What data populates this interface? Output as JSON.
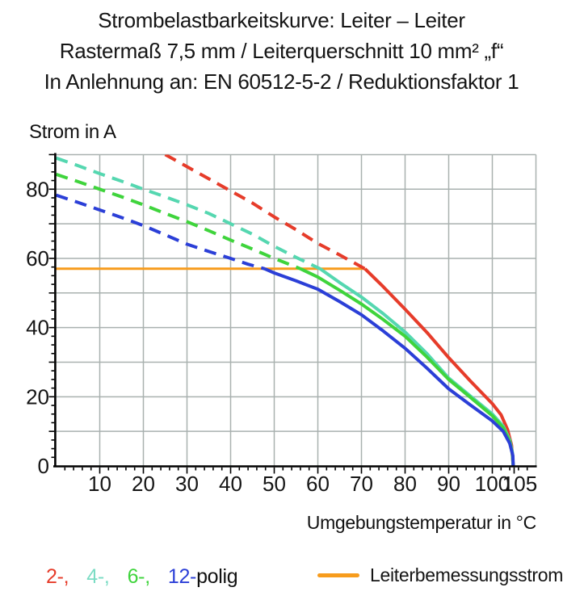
{
  "chart_data": {
    "type": "line",
    "title_lines": [
      "Strombelastbarkeitskurve: Leiter – Leiter",
      "Rastermaß 7,5 mm / Leiterquerschnitt 10 mm² „f“",
      "In Anlehnung an: EN 60512-5-2 / Reduktionsfaktor 1"
    ],
    "xlabel": "Umgebungstemperatur in °C",
    "ylabel": "Strom in A",
    "xlim": [
      0,
      110
    ],
    "ylim": [
      0,
      90
    ],
    "x_tick_labels": [
      10,
      20,
      30,
      40,
      50,
      60,
      70,
      80,
      90,
      100,
      105
    ],
    "y_tick_labels": [
      0,
      20,
      40,
      60,
      80
    ],
    "x_grid": [
      10,
      20,
      30,
      40,
      50,
      60,
      70,
      80,
      90,
      100
    ],
    "y_grid": [
      10,
      20,
      30,
      40,
      50,
      60,
      70,
      80
    ],
    "x_minor_step": 2,
    "y_minor_step": 2.5,
    "grid": true,
    "legend_position": "bottom",
    "rated_current_A": 57,
    "rated_line": {
      "name": "Leiterbemessungsstrom",
      "color": "#f79c1d",
      "points": [
        [
          0,
          57
        ],
        [
          70.8,
          57
        ]
      ]
    },
    "colors": {
      "grid": "#a9b1af",
      "axis": "#000000",
      "text": "#151515"
    },
    "series": [
      {
        "name": "2-polig",
        "color": "#e63c2a",
        "dashed": [
          [
            25,
            90
          ],
          [
            30,
            86.5
          ],
          [
            35,
            83
          ],
          [
            40,
            79.5
          ],
          [
            45,
            76
          ],
          [
            50,
            72
          ],
          [
            55,
            68.3
          ],
          [
            60,
            64.3
          ],
          [
            65,
            61
          ],
          [
            70.8,
            57
          ]
        ],
        "solid": [
          [
            70.8,
            57
          ],
          [
            75,
            51.8
          ],
          [
            80,
            45.3
          ],
          [
            85,
            38.6
          ],
          [
            90,
            31.3
          ],
          [
            95,
            24.5
          ],
          [
            100,
            18
          ],
          [
            102,
            14.8
          ],
          [
            103.5,
            10.5
          ],
          [
            104.4,
            6
          ],
          [
            104.8,
            0
          ]
        ]
      },
      {
        "name": "4-polig",
        "color": "#55d7b0",
        "dashed": [
          [
            0,
            89
          ],
          [
            5,
            86.8
          ],
          [
            10,
            84.5
          ],
          [
            15,
            82.3
          ],
          [
            20,
            80
          ],
          [
            25,
            77.8
          ],
          [
            30,
            75.5
          ],
          [
            35,
            73
          ],
          [
            40,
            70
          ],
          [
            45,
            67
          ],
          [
            50,
            63.5
          ],
          [
            55,
            60.3
          ],
          [
            60.5,
            57
          ]
        ],
        "solid": [
          [
            60.5,
            57
          ],
          [
            65,
            53
          ],
          [
            70,
            48.8
          ],
          [
            75,
            44
          ],
          [
            80,
            38.7
          ],
          [
            85,
            32.5
          ],
          [
            90,
            25.4
          ],
          [
            95,
            20.2
          ],
          [
            100,
            15
          ],
          [
            102.5,
            11.5
          ],
          [
            104,
            7.5
          ],
          [
            104.6,
            4
          ],
          [
            104.8,
            0
          ]
        ]
      },
      {
        "name": "6-polig",
        "color": "#3fd43c",
        "dashed": [
          [
            0,
            84.3
          ],
          [
            5,
            82.2
          ],
          [
            10,
            80
          ],
          [
            15,
            77.8
          ],
          [
            20,
            75.5
          ],
          [
            25,
            73
          ],
          [
            30,
            70.6
          ],
          [
            35,
            68
          ],
          [
            40,
            65.3
          ],
          [
            45,
            62.7
          ],
          [
            50,
            60
          ],
          [
            56,
            57
          ]
        ],
        "solid": [
          [
            56,
            57
          ],
          [
            60,
            54.6
          ],
          [
            65,
            50.8
          ],
          [
            70,
            46.8
          ],
          [
            75,
            42.3
          ],
          [
            80,
            37.5
          ],
          [
            85,
            31.5
          ],
          [
            90,
            25
          ],
          [
            95,
            19.8
          ],
          [
            100,
            14.5
          ],
          [
            102.5,
            11
          ],
          [
            104,
            7
          ],
          [
            104.6,
            3.5
          ],
          [
            104.8,
            0
          ]
        ]
      },
      {
        "name": "12-polig",
        "color": "#2b3fd7",
        "dashed": [
          [
            0,
            78.3
          ],
          [
            5,
            76.2
          ],
          [
            10,
            74
          ],
          [
            15,
            71.8
          ],
          [
            20,
            69.5
          ],
          [
            25,
            66.8
          ],
          [
            30,
            64.1
          ],
          [
            35,
            62
          ],
          [
            40,
            60
          ],
          [
            44,
            58.3
          ],
          [
            47.8,
            57
          ]
        ],
        "solid": [
          [
            47.8,
            57
          ],
          [
            50,
            55.8
          ],
          [
            55,
            53.5
          ],
          [
            60,
            51.1
          ],
          [
            65,
            47.5
          ],
          [
            70,
            43.7
          ],
          [
            75,
            39
          ],
          [
            80,
            34
          ],
          [
            85,
            28.3
          ],
          [
            90,
            22.3
          ],
          [
            95,
            17.6
          ],
          [
            100,
            13
          ],
          [
            102.5,
            10
          ],
          [
            104,
            6.5
          ],
          [
            104.7,
            3
          ],
          [
            104.8,
            0
          ]
        ]
      }
    ]
  },
  "legend": {
    "pole_entries": [
      {
        "label": "2-,",
        "color": "#e63c2a"
      },
      {
        "label": "4-,",
        "color": "#7bdcc4"
      },
      {
        "label": "6-,",
        "color": "#3fd43c"
      },
      {
        "label": "12-",
        "color": "#2b3fd7"
      }
    ],
    "pole_suffix": "polig",
    "rated_current_label": "Leiterbemessungsstrom",
    "rated_color": "#f79c1d"
  }
}
